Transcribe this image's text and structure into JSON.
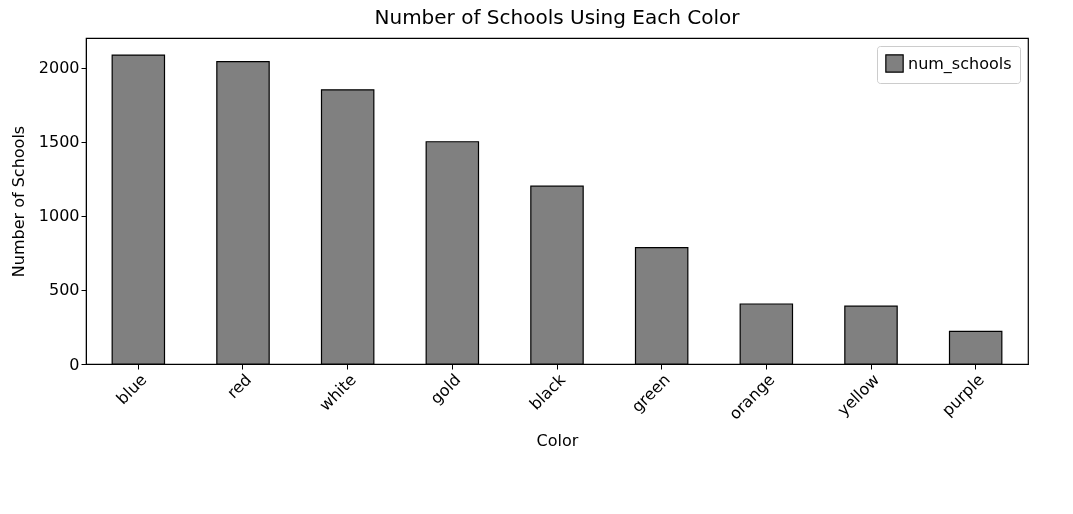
{
  "chart_data": {
    "type": "bar",
    "title": "Number of Schools Using Each Color",
    "xlabel": "Color",
    "ylabel": "Number of Schools",
    "categories": [
      "blue",
      "red",
      "white",
      "gold",
      "black",
      "green",
      "orange",
      "yellow",
      "purple"
    ],
    "series": [
      {
        "name": "num_schools",
        "color": "#808080",
        "values": [
          2085,
          2040,
          1850,
          1500,
          1200,
          785,
          405,
          390,
          220
        ]
      }
    ],
    "ylim": [
      0,
      2200
    ],
    "yticks": [
      0,
      500,
      1000,
      1500,
      2000
    ],
    "grid": false,
    "legend": "top right"
  }
}
